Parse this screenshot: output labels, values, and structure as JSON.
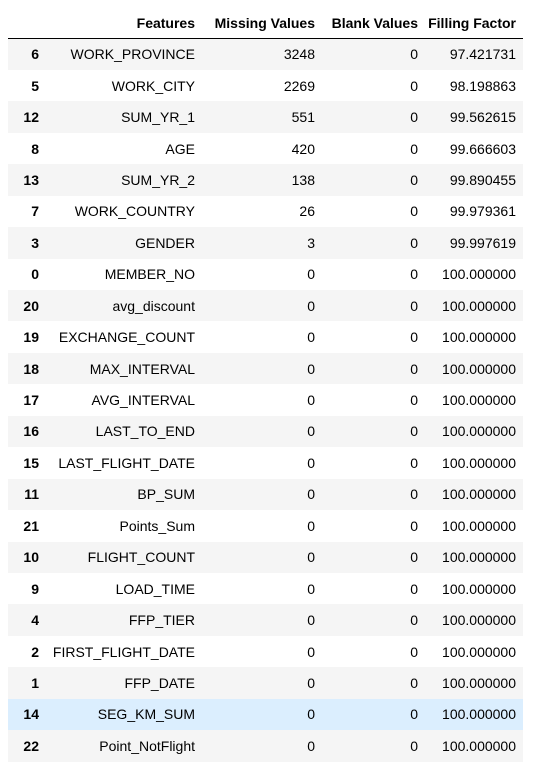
{
  "columns": {
    "index": "",
    "features": "Features",
    "missing": "Missing Values",
    "blank": "Blank Values",
    "filling": "Filling Factor"
  },
  "rows": [
    {
      "index": "6",
      "feature": "WORK_PROVINCE",
      "missing": "3248",
      "blank": "0",
      "filling": "97.421731"
    },
    {
      "index": "5",
      "feature": "WORK_CITY",
      "missing": "2269",
      "blank": "0",
      "filling": "98.198863"
    },
    {
      "index": "12",
      "feature": "SUM_YR_1",
      "missing": "551",
      "blank": "0",
      "filling": "99.562615"
    },
    {
      "index": "8",
      "feature": "AGE",
      "missing": "420",
      "blank": "0",
      "filling": "99.666603"
    },
    {
      "index": "13",
      "feature": "SUM_YR_2",
      "missing": "138",
      "blank": "0",
      "filling": "99.890455"
    },
    {
      "index": "7",
      "feature": "WORK_COUNTRY",
      "missing": "26",
      "blank": "0",
      "filling": "99.979361"
    },
    {
      "index": "3",
      "feature": "GENDER",
      "missing": "3",
      "blank": "0",
      "filling": "99.997619"
    },
    {
      "index": "0",
      "feature": "MEMBER_NO",
      "missing": "0",
      "blank": "0",
      "filling": "100.000000"
    },
    {
      "index": "20",
      "feature": "avg_discount",
      "missing": "0",
      "blank": "0",
      "filling": "100.000000"
    },
    {
      "index": "19",
      "feature": "EXCHANGE_COUNT",
      "missing": "0",
      "blank": "0",
      "filling": "100.000000"
    },
    {
      "index": "18",
      "feature": "MAX_INTERVAL",
      "missing": "0",
      "blank": "0",
      "filling": "100.000000"
    },
    {
      "index": "17",
      "feature": "AVG_INTERVAL",
      "missing": "0",
      "blank": "0",
      "filling": "100.000000"
    },
    {
      "index": "16",
      "feature": "LAST_TO_END",
      "missing": "0",
      "blank": "0",
      "filling": "100.000000"
    },
    {
      "index": "15",
      "feature": "LAST_FLIGHT_DATE",
      "missing": "0",
      "blank": "0",
      "filling": "100.000000"
    },
    {
      "index": "11",
      "feature": "BP_SUM",
      "missing": "0",
      "blank": "0",
      "filling": "100.000000"
    },
    {
      "index": "21",
      "feature": "Points_Sum",
      "missing": "0",
      "blank": "0",
      "filling": "100.000000"
    },
    {
      "index": "10",
      "feature": "FLIGHT_COUNT",
      "missing": "0",
      "blank": "0",
      "filling": "100.000000"
    },
    {
      "index": "9",
      "feature": "LOAD_TIME",
      "missing": "0",
      "blank": "0",
      "filling": "100.000000"
    },
    {
      "index": "4",
      "feature": "FFP_TIER",
      "missing": "0",
      "blank": "0",
      "filling": "100.000000"
    },
    {
      "index": "2",
      "feature": "FIRST_FLIGHT_DATE",
      "missing": "0",
      "blank": "0",
      "filling": "100.000000"
    },
    {
      "index": "1",
      "feature": "FFP_DATE",
      "missing": "0",
      "blank": "0",
      "filling": "100.000000"
    },
    {
      "index": "14",
      "feature": "SEG_KM_SUM",
      "missing": "0",
      "blank": "0",
      "filling": "100.000000",
      "highlighted": true
    },
    {
      "index": "22",
      "feature": "Point_NotFlight",
      "missing": "0",
      "blank": "0",
      "filling": "100.000000"
    }
  ],
  "colors": {
    "row_odd": "#f5f5f5",
    "row_even": "#ffffff",
    "row_hover": "#dbeefe",
    "header_rule": "#000000"
  }
}
